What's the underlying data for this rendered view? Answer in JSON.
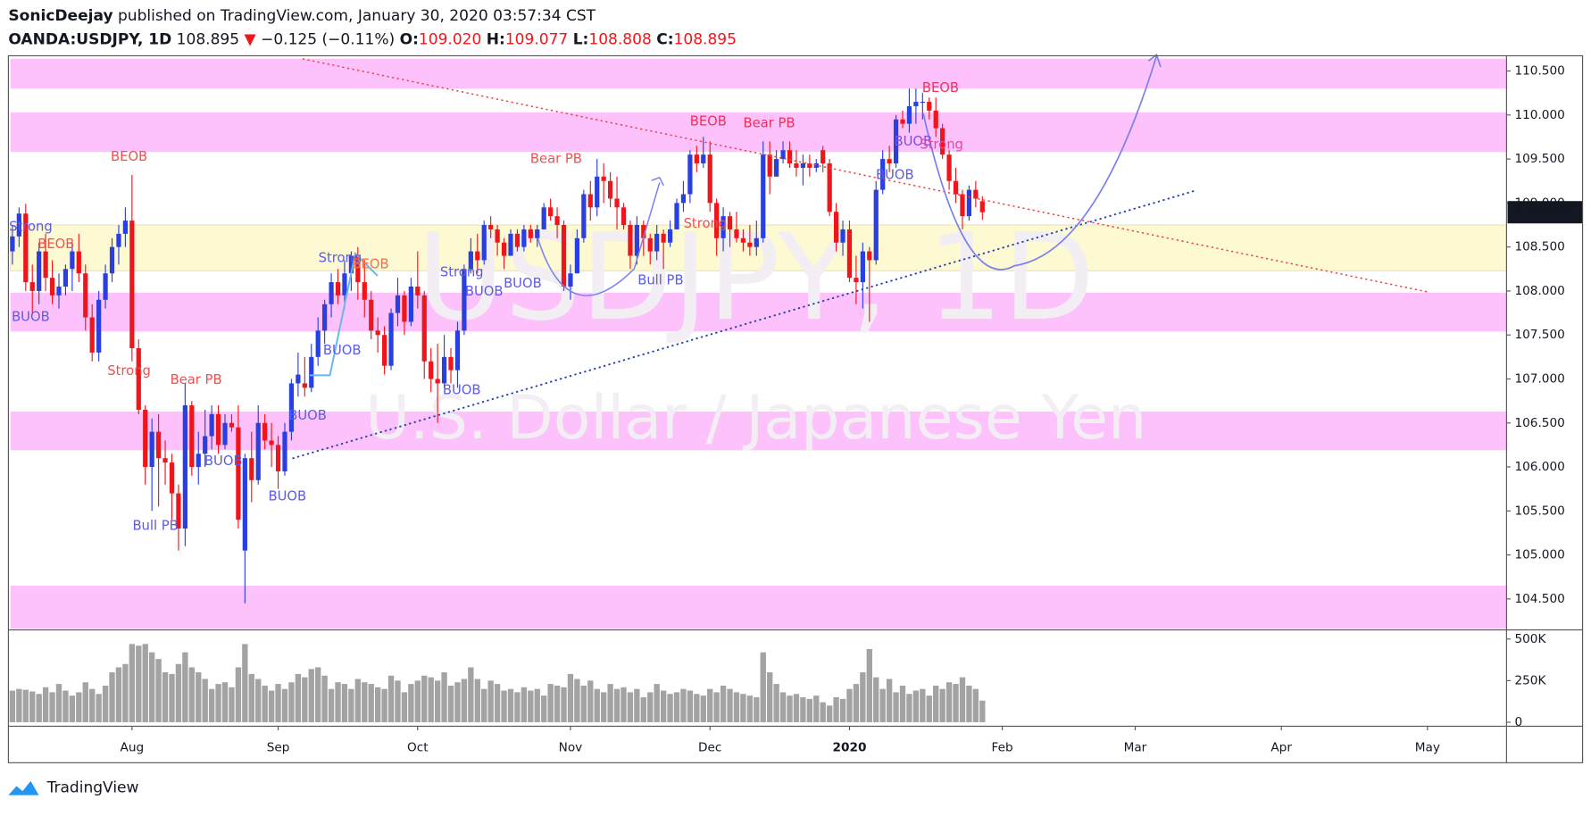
{
  "header": {
    "publisher": "SonicDeejay",
    "published": "published on TradingView.com, January 30, 2020 03:57:34 CST",
    "symbol": "OANDA:USDJPY, 1D",
    "last": "108.895",
    "arrow": "▼",
    "change": "−0.125 (−0.11%)",
    "o_label": "O:",
    "o": "109.020",
    "h_label": "H:",
    "h": "109.077",
    "l_label": "L:",
    "l": "108.808",
    "c_label": "C:",
    "c": "108.895"
  },
  "footer": {
    "brand": "TradingView"
  },
  "chart_data": {
    "type": "candlestick",
    "watermark": "USDJPY, 1D",
    "subtitle": "U.S. Dollar / Japanese Yen",
    "up_color": "#2a3fe0",
    "down_color": "#f0151a",
    "volume_color": "#a3a3a3",
    "ylim": [
      104.16,
      110.65
    ],
    "yticks": [
      {
        "value": 104.5,
        "label": "104.500"
      },
      {
        "value": 105,
        "label": "105.000"
      },
      {
        "value": 105.5,
        "label": "105.500"
      },
      {
        "value": 106,
        "label": "106.000"
      },
      {
        "value": 106.5,
        "label": "106.500"
      },
      {
        "value": 107,
        "label": "107.000"
      },
      {
        "value": 107.5,
        "label": "107.500"
      },
      {
        "value": 108,
        "label": "108.000"
      },
      {
        "value": 108.5,
        "label": "108.500"
      },
      {
        "value": 109,
        "label": "109.000"
      },
      {
        "value": 109.5,
        "label": "109.500"
      },
      {
        "value": 110,
        "label": "110.000"
      },
      {
        "value": 110.5,
        "label": "110.500"
      }
    ],
    "xlim": [
      -0.3,
      224.9
    ],
    "xticks": [
      {
        "value": 18,
        "label": "Aug"
      },
      {
        "value": 40,
        "label": "Sep"
      },
      {
        "value": 61,
        "label": "Oct"
      },
      {
        "value": 84,
        "label": "Nov"
      },
      {
        "value": 105,
        "label": "Dec"
      },
      {
        "value": 126,
        "label": "2020"
      },
      {
        "value": 149,
        "label": "Feb"
      },
      {
        "value": 169,
        "label": "Mar"
      },
      {
        "value": 191,
        "label": "Apr"
      },
      {
        "value": 213,
        "label": "May"
      }
    ],
    "last_price": {
      "value": 108.895,
      "label": "108.895"
    },
    "zones": [
      {
        "low": 110.3,
        "high": 110.64,
        "color": "#fdc2fb"
      },
      {
        "low": 109.58,
        "high": 110.03,
        "color": "#fdc2fb"
      },
      {
        "low": 108.23,
        "high": 108.75,
        "color": "#fdf9d2"
      },
      {
        "low": 107.54,
        "high": 107.98,
        "color": "#fdc2fb"
      },
      {
        "low": 106.19,
        "high": 106.63,
        "color": "#fdc2fb"
      },
      {
        "low": 104.16,
        "high": 104.65,
        "color": "#fdc2fb"
      }
    ],
    "candles": [
      [
        108.45,
        108.75,
        108.3,
        108.62
      ],
      [
        108.62,
        108.95,
        108.5,
        108.88
      ],
      [
        108.88,
        108.99,
        108.0,
        108.1
      ],
      [
        108.1,
        108.3,
        107.75,
        108.0
      ],
      [
        108.0,
        108.55,
        107.85,
        108.45
      ],
      [
        108.45,
        108.65,
        108.0,
        108.15
      ],
      [
        108.15,
        108.35,
        107.85,
        107.95
      ],
      [
        107.95,
        108.2,
        107.8,
        108.05
      ],
      [
        108.05,
        108.3,
        107.95,
        108.25
      ],
      [
        108.25,
        108.55,
        108.0,
        108.45
      ],
      [
        108.45,
        108.65,
        108.1,
        108.2
      ],
      [
        108.2,
        108.3,
        107.55,
        107.7
      ],
      [
        107.7,
        107.85,
        107.2,
        107.3
      ],
      [
        107.3,
        108.0,
        107.2,
        107.9
      ],
      [
        107.9,
        108.3,
        107.8,
        108.2
      ],
      [
        108.2,
        108.6,
        108.1,
        108.5
      ],
      [
        108.5,
        108.75,
        108.3,
        108.65
      ],
      [
        108.65,
        108.95,
        108.5,
        108.8
      ],
      [
        108.8,
        109.32,
        107.2,
        107.35
      ],
      [
        107.35,
        107.45,
        106.6,
        106.65
      ],
      [
        106.65,
        106.7,
        105.8,
        106.0
      ],
      [
        106.0,
        106.55,
        105.5,
        106.4
      ],
      [
        106.4,
        106.6,
        105.55,
        106.1
      ],
      [
        106.1,
        106.3,
        105.8,
        106.05
      ],
      [
        106.05,
        106.15,
        105.4,
        105.7
      ],
      [
        105.7,
        105.8,
        105.05,
        105.3
      ],
      [
        105.3,
        106.95,
        105.1,
        106.7
      ],
      [
        106.7,
        106.75,
        105.9,
        106.0
      ],
      [
        106.0,
        106.4,
        105.8,
        106.15
      ],
      [
        106.15,
        106.65,
        106.0,
        106.35
      ],
      [
        106.35,
        106.7,
        106.2,
        106.6
      ],
      [
        106.6,
        106.7,
        106.15,
        106.25
      ],
      [
        106.25,
        106.6,
        106.2,
        106.5
      ],
      [
        106.5,
        106.6,
        106.4,
        106.45
      ],
      [
        106.45,
        106.7,
        105.3,
        105.4
      ],
      [
        105.05,
        106.15,
        104.45,
        106.1
      ],
      [
        106.1,
        106.4,
        105.6,
        105.85
      ],
      [
        105.85,
        106.7,
        105.8,
        106.5
      ],
      [
        106.5,
        106.6,
        106.2,
        106.3
      ],
      [
        106.3,
        106.5,
        106.0,
        106.25
      ],
      [
        106.25,
        106.35,
        105.75,
        105.95
      ],
      [
        105.95,
        106.5,
        105.9,
        106.4
      ],
      [
        106.4,
        107.0,
        106.3,
        106.95
      ],
      [
        106.95,
        107.3,
        106.8,
        107.05
      ],
      [
        106.95,
        107.25,
        106.8,
        106.9
      ],
      [
        106.9,
        107.4,
        106.85,
        107.25
      ],
      [
        107.25,
        107.7,
        107.15,
        107.55
      ],
      [
        107.55,
        107.9,
        107.4,
        107.85
      ],
      [
        107.85,
        108.2,
        107.7,
        108.1
      ],
      [
        108.1,
        108.25,
        107.85,
        107.95
      ],
      [
        107.95,
        108.35,
        107.8,
        108.2
      ],
      [
        108.2,
        108.45,
        108.0,
        108.4
      ],
      [
        108.4,
        108.5,
        107.9,
        108.1
      ],
      [
        108.1,
        108.35,
        107.7,
        107.9
      ],
      [
        107.9,
        108.0,
        107.45,
        107.55
      ],
      [
        107.55,
        107.7,
        107.3,
        107.5
      ],
      [
        107.5,
        107.6,
        107.05,
        107.15
      ],
      [
        107.15,
        107.8,
        107.1,
        107.75
      ],
      [
        107.75,
        108.15,
        107.6,
        107.95
      ],
      [
        107.95,
        108.0,
        107.5,
        107.65
      ],
      [
        107.65,
        108.15,
        107.6,
        108.05
      ],
      [
        108.05,
        108.45,
        107.8,
        107.95
      ],
      [
        107.95,
        108.0,
        107.0,
        107.2
      ],
      [
        107.2,
        107.35,
        106.85,
        107.0
      ],
      [
        107.0,
        107.4,
        106.5,
        106.95
      ],
      [
        106.95,
        107.5,
        106.9,
        107.25
      ],
      [
        107.25,
        107.35,
        106.95,
        107.1
      ],
      [
        107.1,
        107.65,
        106.9,
        107.55
      ],
      [
        107.55,
        108.3,
        107.5,
        108.25
      ],
      [
        108.25,
        108.6,
        108.2,
        108.45
      ],
      [
        108.45,
        108.65,
        108.2,
        108.35
      ],
      [
        108.35,
        108.8,
        108.3,
        108.75
      ],
      [
        108.75,
        108.85,
        108.6,
        108.7
      ],
      [
        108.7,
        108.75,
        108.4,
        108.55
      ],
      [
        108.55,
        108.6,
        108.25,
        108.4
      ],
      [
        108.4,
        108.7,
        108.4,
        108.65
      ],
      [
        108.65,
        108.7,
        108.45,
        108.5
      ],
      [
        108.5,
        108.75,
        108.45,
        108.7
      ],
      [
        108.7,
        108.75,
        108.55,
        108.6
      ],
      [
        108.6,
        108.75,
        108.5,
        108.7
      ],
      [
        108.7,
        109.0,
        108.7,
        108.95
      ],
      [
        108.95,
        109.05,
        108.8,
        108.85
      ],
      [
        108.85,
        108.95,
        108.6,
        108.75
      ],
      [
        108.75,
        108.8,
        108.0,
        108.05
      ],
      [
        108.05,
        108.3,
        107.9,
        108.2
      ],
      [
        108.2,
        108.7,
        108.2,
        108.6
      ],
      [
        108.6,
        109.15,
        108.55,
        109.1
      ],
      [
        109.1,
        109.25,
        108.8,
        108.95
      ],
      [
        108.95,
        109.5,
        108.85,
        109.3
      ],
      [
        109.3,
        109.45,
        109.0,
        109.25
      ],
      [
        109.25,
        109.35,
        108.95,
        109.05
      ],
      [
        109.05,
        109.3,
        108.7,
        108.95
      ],
      [
        108.95,
        109.0,
        108.7,
        108.75
      ],
      [
        108.75,
        108.8,
        108.25,
        108.4
      ],
      [
        108.4,
        108.85,
        108.3,
        108.75
      ],
      [
        108.75,
        108.8,
        108.4,
        108.6
      ],
      [
        108.6,
        108.65,
        108.3,
        108.45
      ],
      [
        108.45,
        108.75,
        108.35,
        108.65
      ],
      [
        108.65,
        108.7,
        108.25,
        108.55
      ],
      [
        108.55,
        108.8,
        108.5,
        108.7
      ],
      [
        108.7,
        109.05,
        108.7,
        109.0
      ],
      [
        109.0,
        109.25,
        108.9,
        109.1
      ],
      [
        109.1,
        109.6,
        109.0,
        109.55
      ],
      [
        109.55,
        109.65,
        109.35,
        109.45
      ],
      [
        109.45,
        109.75,
        109.4,
        109.55
      ],
      [
        109.55,
        109.7,
        108.9,
        109.0
      ],
      [
        109.0,
        109.05,
        108.4,
        108.6
      ],
      [
        108.6,
        108.95,
        108.45,
        108.85
      ],
      [
        108.85,
        108.9,
        108.5,
        108.7
      ],
      [
        108.7,
        108.9,
        108.55,
        108.6
      ],
      [
        108.6,
        108.7,
        108.45,
        108.55
      ],
      [
        108.55,
        108.75,
        108.4,
        108.5
      ],
      [
        108.5,
        108.8,
        108.4,
        108.6
      ],
      [
        108.6,
        109.7,
        108.55,
        109.55
      ],
      [
        109.55,
        109.7,
        109.1,
        109.3
      ],
      [
        109.3,
        109.6,
        109.3,
        109.5
      ],
      [
        109.5,
        109.7,
        109.45,
        109.6
      ],
      [
        109.6,
        109.7,
        109.4,
        109.45
      ],
      [
        109.45,
        109.6,
        109.3,
        109.4
      ],
      [
        109.4,
        109.55,
        109.2,
        109.45
      ],
      [
        109.45,
        109.55,
        109.3,
        109.4
      ],
      [
        109.4,
        109.5,
        109.35,
        109.45
      ],
      [
        109.6,
        109.65,
        109.35,
        109.45
      ],
      [
        109.45,
        109.5,
        108.85,
        108.9
      ],
      [
        108.9,
        109.0,
        108.45,
        108.55
      ],
      [
        108.55,
        108.8,
        108.4,
        108.7
      ],
      [
        108.7,
        108.8,
        108.1,
        108.15
      ],
      [
        108.15,
        108.4,
        107.85,
        108.1
      ],
      [
        108.1,
        108.55,
        107.8,
        108.45
      ],
      [
        108.45,
        108.5,
        107.65,
        108.35
      ],
      [
        108.35,
        109.25,
        108.3,
        109.15
      ],
      [
        109.15,
        109.6,
        109.1,
        109.5
      ],
      [
        109.5,
        109.65,
        109.35,
        109.45
      ],
      [
        109.45,
        110.0,
        109.4,
        109.95
      ],
      [
        109.95,
        110.05,
        109.85,
        109.9
      ],
      [
        109.9,
        110.3,
        109.8,
        110.1
      ],
      [
        110.1,
        110.3,
        109.9,
        110.15
      ],
      [
        110.15,
        110.25,
        109.95,
        110.15
      ],
      [
        110.15,
        110.2,
        109.95,
        110.05
      ],
      [
        110.05,
        110.2,
        109.75,
        109.85
      ],
      [
        109.85,
        109.9,
        109.5,
        109.55
      ],
      [
        109.55,
        109.6,
        109.15,
        109.25
      ],
      [
        109.25,
        109.4,
        109.0,
        109.1
      ],
      [
        109.1,
        109.15,
        108.7,
        108.85
      ],
      [
        108.85,
        109.2,
        108.8,
        109.15
      ],
      [
        109.15,
        109.25,
        108.95,
        109.05
      ],
      [
        109.02,
        109.077,
        108.808,
        108.895
      ]
    ],
    "volumes": [
      190000,
      200000,
      195000,
      185000,
      170000,
      210000,
      180000,
      230000,
      190000,
      160000,
      180000,
      240000,
      200000,
      170000,
      220000,
      300000,
      330000,
      350000,
      470000,
      460000,
      470000,
      420000,
      380000,
      300000,
      290000,
      350000,
      420000,
      330000,
      300000,
      260000,
      200000,
      230000,
      240000,
      210000,
      330000,
      470000,
      290000,
      260000,
      220000,
      190000,
      230000,
      200000,
      240000,
      290000,
      270000,
      320000,
      330000,
      280000,
      200000,
      240000,
      230000,
      200000,
      260000,
      240000,
      230000,
      210000,
      200000,
      280000,
      250000,
      180000,
      230000,
      250000,
      280000,
      270000,
      250000,
      300000,
      220000,
      240000,
      260000,
      330000,
      260000,
      200000,
      250000,
      230000,
      190000,
      200000,
      180000,
      210000,
      190000,
      200000,
      160000,
      230000,
      220000,
      210000,
      290000,
      260000,
      220000,
      250000,
      200000,
      180000,
      230000,
      200000,
      210000,
      180000,
      200000,
      150000,
      180000,
      230000,
      190000,
      170000,
      180000,
      200000,
      190000,
      170000,
      160000,
      200000,
      180000,
      220000,
      200000,
      180000,
      170000,
      160000,
      150000,
      420000,
      300000,
      230000,
      180000,
      160000,
      170000,
      150000,
      140000,
      160000,
      120000,
      100000,
      150000,
      140000,
      200000,
      230000,
      300000,
      440000,
      270000,
      200000,
      260000,
      180000,
      220000,
      170000,
      190000,
      200000,
      160000,
      220000,
      200000,
      240000,
      230000,
      270000,
      220000,
      200000,
      130000
    ],
    "vol_ylim": [
      -24000,
      549000
    ],
    "vol_ticks": [
      {
        "value": 0,
        "label": "0"
      },
      {
        "value": 250000,
        "label": "250K"
      },
      {
        "value": 500000,
        "label": "500K"
      }
    ],
    "annotations": [
      {
        "text": "Strong",
        "color": "#5b5be6"
      },
      {
        "text": "BEOB",
        "color": "#f05050"
      },
      {
        "text": "BUOB",
        "color": "#5b5be6"
      },
      {
        "text": "BEOB",
        "color": "#f05050"
      },
      {
        "text": "Strong",
        "color": "#f05050"
      },
      {
        "text": "Bear PB",
        "color": "#f05050"
      },
      {
        "text": "BUOB",
        "color": "#5b5be6"
      },
      {
        "text": "Bull PB",
        "color": "#5b5be6"
      },
      {
        "text": "BUOB",
        "color": "#5b5be6"
      },
      {
        "text": "BUOB",
        "color": "#5b5be6"
      },
      {
        "text": "BUOB",
        "color": "#5b5be6"
      },
      {
        "text": "Strong",
        "color": "#5b5be6"
      },
      {
        "text": "BEOB",
        "color": "#f07050"
      },
      {
        "text": "Strong",
        "color": "#5b5be6"
      },
      {
        "text": "BUOB",
        "color": "#5b5be6"
      },
      {
        "text": "BUOB",
        "color": "#5b5be6"
      },
      {
        "text": "BUOB",
        "color": "#5b5be6"
      },
      {
        "text": "Bear PB",
        "color": "#f05050"
      },
      {
        "text": "Bull PB",
        "color": "#5b5be6"
      },
      {
        "text": "BEOB",
        "color": "#f0305a"
      },
      {
        "text": "Bear PB",
        "color": "#f0305a"
      },
      {
        "text": "Strong",
        "color": "#f05050"
      },
      {
        "text": "BUOB",
        "color": "#5b5be6"
      },
      {
        "text": "BUOB",
        "color": "#7a4ee0"
      },
      {
        "text": "BEOB",
        "color": "#f0305a"
      },
      {
        "text": "Strong",
        "color": "#e04aa0"
      }
    ]
  }
}
